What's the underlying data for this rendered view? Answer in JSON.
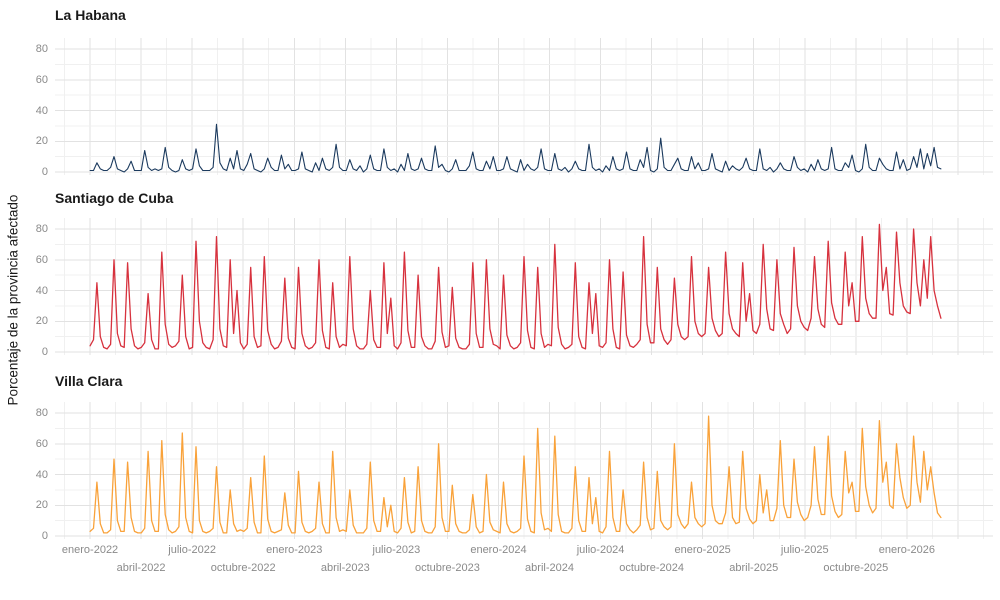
{
  "figure": {
    "ylabel": "Porcentaje de la provincia afectado",
    "y_ticks": [
      0,
      20,
      40,
      60,
      80
    ],
    "grid_major_color": "#e2e2e2",
    "grid_minor_color": "#f0f0f0",
    "tick_text_color": "#8a8a8a",
    "background_color": "#ffffff"
  },
  "chart_data": {
    "type": "line",
    "title": "",
    "xlabel": "",
    "ylabel": "Porcentaje de la provincia afectado",
    "ylim": [
      0,
      85
    ],
    "grid": "major y minor, gris claro, horizontales cada 10 y verticales cada 1.5 meses",
    "legend_position": "none (titulos de panel por provincia)",
    "x_range": "enero-2022 a ~febrero-2026, serie diaria muestreada cada ~6 dias (250 puntos por provincia)",
    "x_tick_row1": [
      "enero-2022",
      "julio-2022",
      "enero-2023",
      "julio-2023",
      "enero-2024",
      "julio-2024",
      "enero-2025",
      "julio-2025",
      "enero-2026"
    ],
    "x_tick_row2": [
      "abril-2022",
      "octubre-2022",
      "abril-2023",
      "octubre-2023",
      "abril-2024",
      "octubre-2024",
      "abril-2025",
      "octubre-2025"
    ],
    "panels": [
      {
        "name": "La Habana",
        "slug": "la-habana",
        "color": "#1b3a5e",
        "values": [
          1,
          1,
          6,
          2,
          1,
          1,
          3,
          10,
          2,
          1,
          0,
          2,
          7,
          1,
          1,
          1,
          14,
          3,
          1,
          2,
          1,
          2,
          16,
          3,
          1,
          0,
          1,
          8,
          2,
          1,
          2,
          15,
          4,
          1,
          1,
          1,
          3,
          31,
          6,
          2,
          1,
          9,
          2,
          14,
          2,
          1,
          5,
          12,
          2,
          1,
          0,
          2,
          9,
          3,
          1,
          1,
          11,
          2,
          5,
          1,
          1,
          2,
          13,
          2,
          1,
          0,
          6,
          1,
          9,
          2,
          1,
          3,
          18,
          3,
          1,
          1,
          8,
          2,
          1,
          4,
          0,
          2,
          11,
          2,
          1,
          1,
          15,
          3,
          1,
          2,
          0,
          5,
          1,
          12,
          2,
          1,
          2,
          9,
          2,
          1,
          1,
          17,
          3,
          5,
          1,
          0,
          2,
          8,
          1,
          1,
          1,
          4,
          13,
          2,
          1,
          1,
          7,
          2,
          10,
          1,
          1,
          2,
          10,
          2,
          1,
          0,
          8,
          1,
          5,
          2,
          1,
          3,
          15,
          2,
          1,
          1,
          12,
          2,
          1,
          3,
          0,
          2,
          7,
          2,
          1,
          1,
          18,
          3,
          1,
          2,
          0,
          4,
          1,
          10,
          2,
          1,
          2,
          13,
          2,
          1,
          1,
          8,
          3,
          16,
          1,
          0,
          2,
          22,
          3,
          1,
          1,
          5,
          9,
          2,
          1,
          1,
          10,
          2,
          6,
          1,
          1,
          2,
          12,
          2,
          1,
          0,
          7,
          1,
          4,
          2,
          1,
          3,
          9,
          2,
          1,
          1,
          15,
          2,
          1,
          3,
          0,
          2,
          6,
          2,
          1,
          1,
          10,
          3,
          1,
          2,
          0,
          5,
          1,
          8,
          2,
          1,
          2,
          16,
          2,
          1,
          1,
          6,
          3,
          11,
          1,
          0,
          2,
          18,
          3,
          1,
          1,
          9,
          5,
          2,
          1,
          1,
          13,
          2,
          8,
          1,
          2,
          10,
          3,
          15,
          2,
          12,
          4,
          16,
          3,
          2
        ]
      },
      {
        "name": "Santiago de Cuba",
        "slug": "santiago-de-cuba",
        "color": "#d7323e",
        "values": [
          4,
          8,
          45,
          10,
          3,
          2,
          5,
          60,
          12,
          4,
          3,
          58,
          15,
          4,
          2,
          3,
          6,
          38,
          8,
          2,
          2,
          65,
          18,
          5,
          3,
          4,
          7,
          50,
          10,
          2,
          3,
          72,
          20,
          6,
          3,
          2,
          8,
          75,
          15,
          4,
          3,
          60,
          12,
          40,
          6,
          2,
          5,
          55,
          10,
          3,
          4,
          62,
          14,
          5,
          2,
          3,
          7,
          48,
          9,
          3,
          2,
          55,
          12,
          4,
          2,
          3,
          6,
          60,
          14,
          3,
          2,
          45,
          10,
          3,
          5,
          4,
          62,
          15,
          4,
          2,
          2,
          5,
          40,
          8,
          3,
          3,
          58,
          12,
          35,
          4,
          2,
          6,
          65,
          14,
          3,
          3,
          50,
          10,
          4,
          2,
          2,
          7,
          55,
          13,
          3,
          4,
          42,
          9,
          3,
          2,
          2,
          5,
          58,
          12,
          3,
          3,
          60,
          15,
          5,
          4,
          2,
          50,
          11,
          4,
          2,
          3,
          6,
          62,
          14,
          3,
          2,
          55,
          12,
          3,
          5,
          4,
          70,
          16,
          5,
          2,
          3,
          5,
          58,
          10,
          3,
          2,
          45,
          12,
          38,
          4,
          3,
          6,
          60,
          15,
          3,
          2,
          52,
          11,
          4,
          3,
          5,
          8,
          75,
          18,
          6,
          6,
          55,
          15,
          8,
          5,
          8,
          48,
          18,
          10,
          8,
          10,
          62,
          20,
          12,
          10,
          12,
          55,
          22,
          14,
          10,
          12,
          65,
          25,
          15,
          12,
          10,
          58,
          20,
          38,
          14,
          12,
          18,
          70,
          28,
          15,
          14,
          60,
          25,
          18,
          12,
          15,
          68,
          30,
          20,
          16,
          14,
          22,
          62,
          28,
          18,
          16,
          72,
          32,
          22,
          18,
          18,
          65,
          30,
          45,
          20,
          20,
          75,
          35,
          25,
          22,
          22,
          83,
          40,
          55,
          25,
          24,
          78,
          45,
          30,
          26,
          25,
          80,
          45,
          30,
          60,
          35,
          75,
          40,
          30,
          22
        ]
      },
      {
        "name": "Villa Clara",
        "slug": "villa-clara",
        "color": "#f9a23a",
        "values": [
          3,
          5,
          35,
          8,
          2,
          2,
          4,
          50,
          10,
          3,
          3,
          48,
          12,
          3,
          2,
          2,
          5,
          55,
          10,
          3,
          3,
          62,
          14,
          4,
          2,
          3,
          6,
          67,
          12,
          3,
          2,
          58,
          10,
          3,
          2,
          3,
          5,
          45,
          9,
          2,
          2,
          30,
          8,
          3,
          4,
          3,
          5,
          38,
          9,
          2,
          2,
          52,
          11,
          3,
          2,
          3,
          4,
          28,
          7,
          2,
          2,
          42,
          9,
          3,
          2,
          3,
          5,
          35,
          8,
          2,
          2,
          55,
          12,
          3,
          4,
          3,
          30,
          7,
          2,
          2,
          2,
          5,
          48,
          10,
          3,
          3,
          25,
          6,
          20,
          3,
          2,
          5,
          38,
          9,
          2,
          3,
          45,
          10,
          3,
          2,
          2,
          6,
          60,
          12,
          3,
          3,
          33,
          8,
          3,
          2,
          2,
          4,
          27,
          6,
          2,
          3,
          40,
          9,
          4,
          3,
          2,
          35,
          8,
          3,
          2,
          3,
          5,
          52,
          11,
          3,
          2,
          70,
          15,
          4,
          5,
          3,
          65,
          14,
          3,
          2,
          2,
          5,
          45,
          10,
          3,
          3,
          38,
          8,
          25,
          3,
          2,
          6,
          55,
          12,
          3,
          3,
          30,
          8,
          4,
          2,
          4,
          7,
          48,
          12,
          4,
          5,
          42,
          10,
          6,
          4,
          6,
          60,
          14,
          8,
          5,
          8,
          35,
          12,
          8,
          6,
          8,
          78,
          20,
          10,
          8,
          8,
          15,
          45,
          12,
          8,
          9,
          55,
          18,
          11,
          8,
          10,
          40,
          15,
          30,
          10,
          10,
          18,
          62,
          20,
          12,
          12,
          50,
          22,
          14,
          10,
          12,
          20,
          58,
          24,
          14,
          14,
          65,
          26,
          16,
          12,
          14,
          55,
          28,
          35,
          16,
          16,
          70,
          32,
          20,
          15,
          18,
          75,
          35,
          48,
          20,
          18,
          60,
          38,
          25,
          18,
          20,
          65,
          35,
          22,
          55,
          30,
          45,
          28,
          15,
          12
        ]
      }
    ]
  }
}
